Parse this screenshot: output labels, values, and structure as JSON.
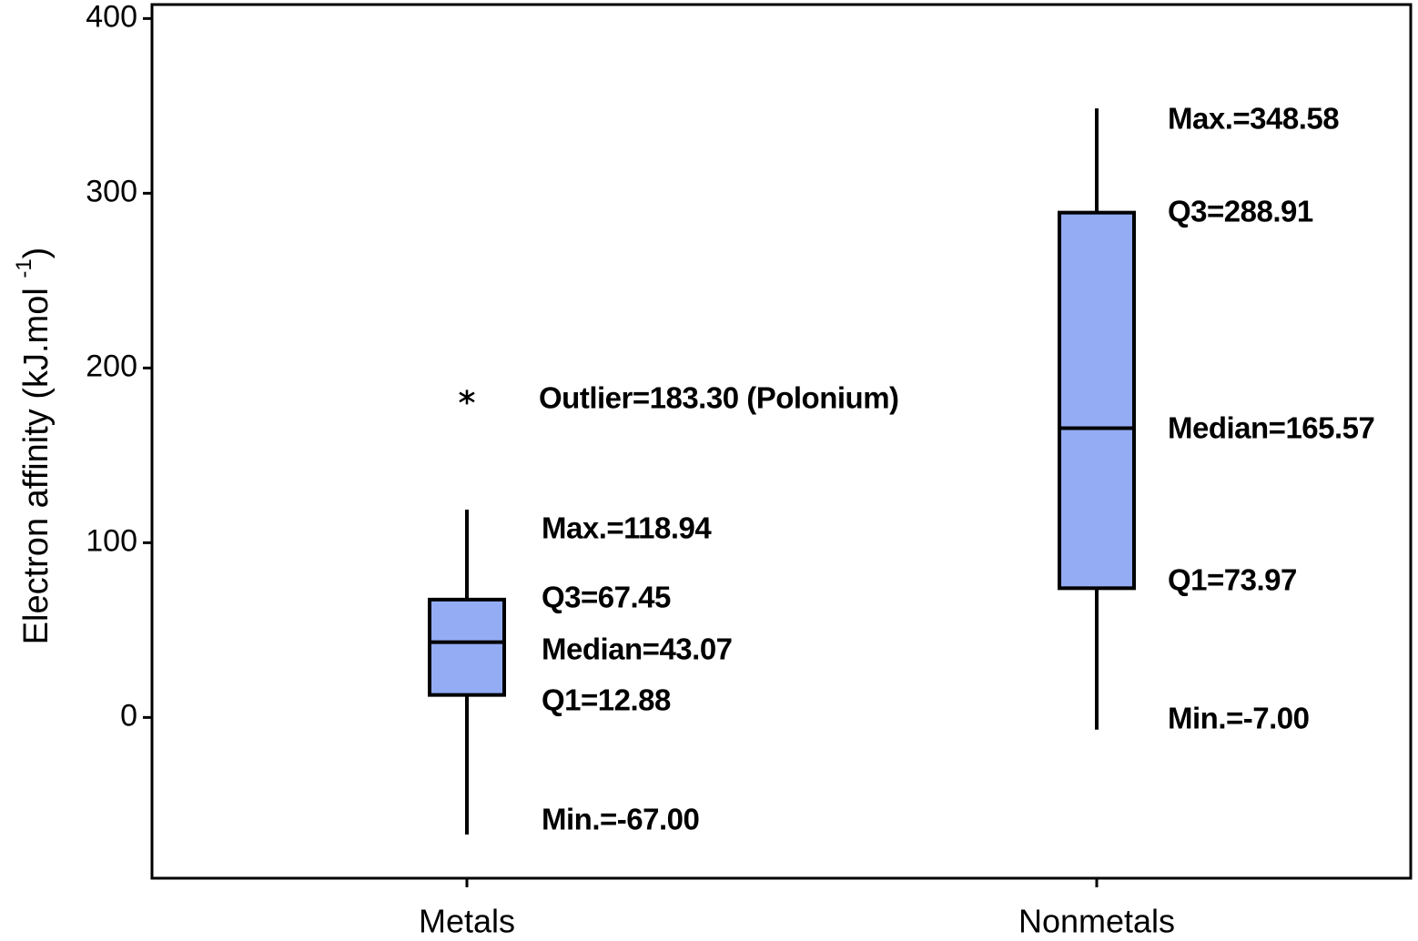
{
  "chart_data": {
    "type": "box",
    "ylabel_parts": [
      "Electron affinity (kJ.mol ",
      "-1",
      ")"
    ],
    "categories": [
      "Metals",
      "Nonmetals"
    ],
    "color": "#94acf4",
    "ylim": [
      -92,
      408
    ],
    "yticks": [
      0,
      100,
      200,
      300,
      400
    ],
    "boxes": [
      {
        "min": -67.0,
        "q1": 12.88,
        "median": 43.07,
        "q3": 67.45,
        "max": 118.94,
        "outliers": [
          183.3
        ],
        "labels": {
          "max": "Max.=118.94",
          "q3": "Q3=67.45",
          "median": "Median=43.07",
          "q1": "Q1=12.88",
          "min": "Min.=-67.00",
          "outliers": [
            "Outlier=183.30 (Polonium)"
          ]
        }
      },
      {
        "min": -7.0,
        "q1": 73.97,
        "median": 165.57,
        "q3": 288.91,
        "max": 348.58,
        "outliers": [],
        "labels": {
          "max": "Max.=348.58",
          "q3": "Q3=288.91",
          "median": "Median=165.57",
          "q1": "Q1=73.97",
          "min": "Min.=-7.00",
          "outliers": []
        }
      }
    ]
  }
}
